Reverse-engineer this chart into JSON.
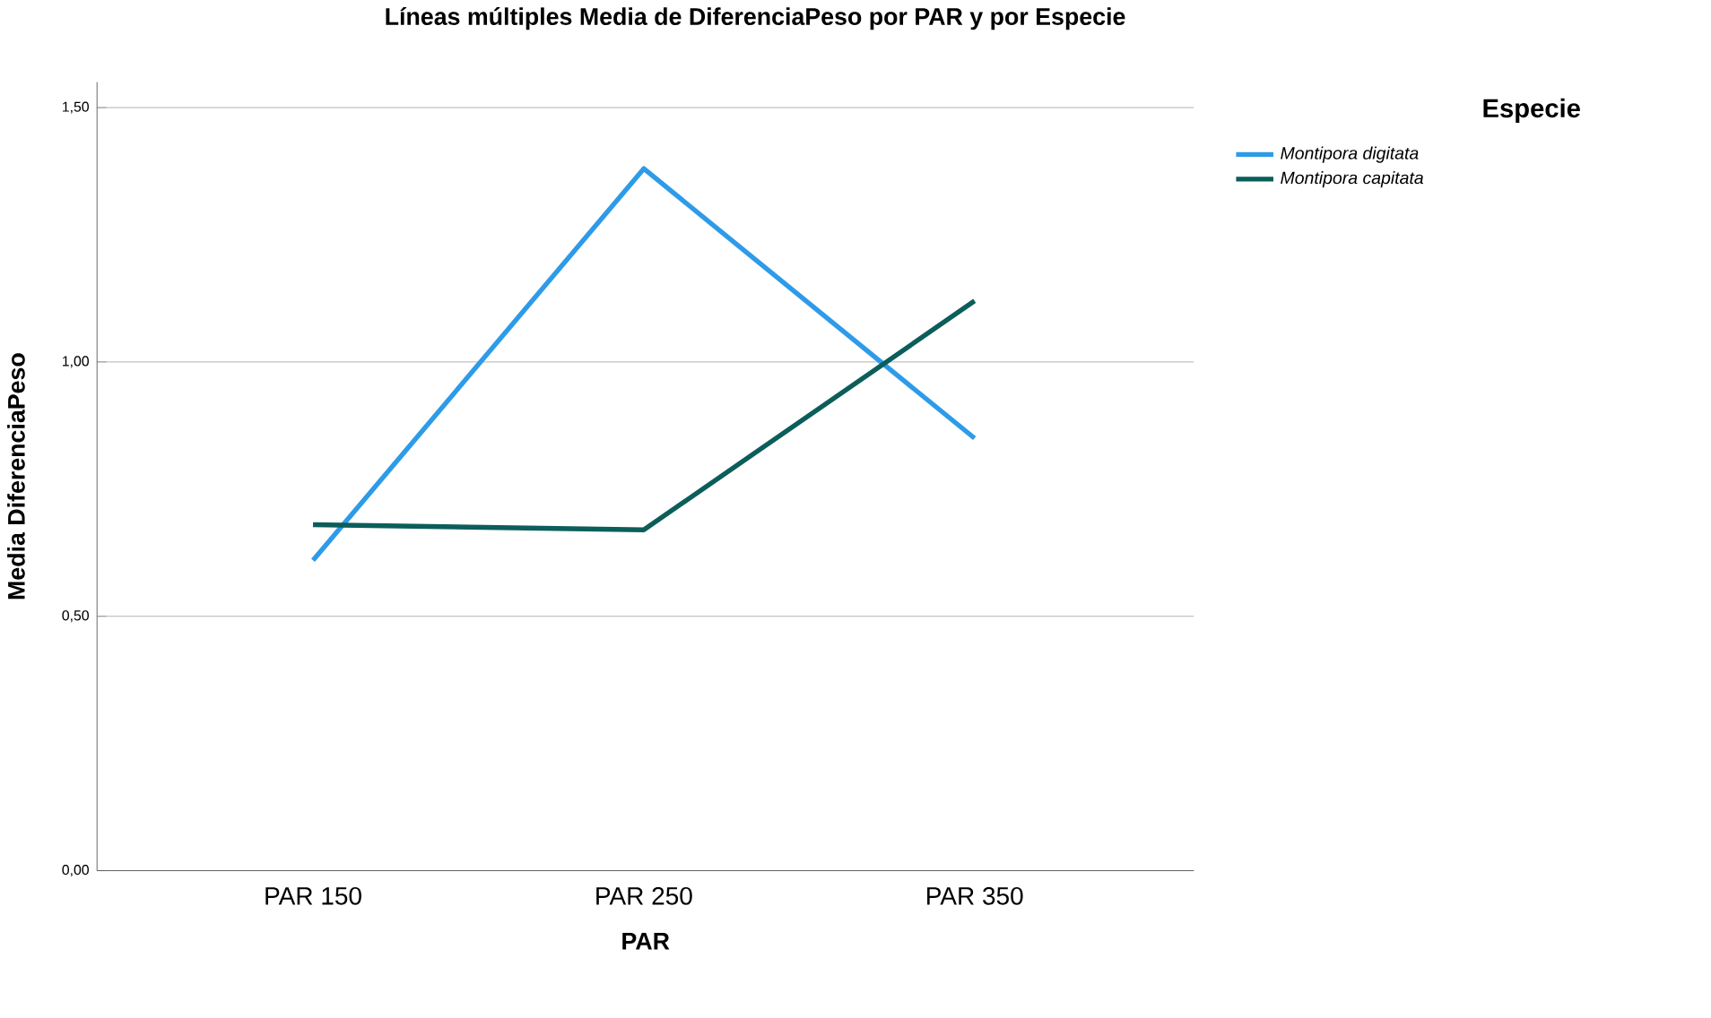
{
  "chart_data": {
    "type": "line",
    "title": "Líneas múltiples Media de DiferenciaPeso por PAR y por Especie",
    "xlabel": "PAR",
    "ylabel": "Media DiferenciaPeso",
    "legend_title": "Especie",
    "categories": [
      "PAR 150",
      "PAR 250",
      "PAR 350"
    ],
    "series": [
      {
        "name": "*Montipora digitata*",
        "color": "#2e9be8",
        "values": [
          0.61,
          1.38,
          0.85
        ]
      },
      {
        "name": "*Montipora capitata*",
        "color": "#0b5e5a",
        "values": [
          0.68,
          0.67,
          1.12
        ]
      }
    ],
    "ylim": [
      0,
      1.55
    ],
    "yticks": [
      {
        "value": 0,
        "label": "0,00"
      },
      {
        "value": 0.5,
        "label": "0,50"
      },
      {
        "value": 1,
        "label": "1,00"
      },
      {
        "value": 1.5,
        "label": "1,50"
      }
    ],
    "grid": "y",
    "legend": "top right",
    "marker": "none",
    "line_style": "solid"
  }
}
